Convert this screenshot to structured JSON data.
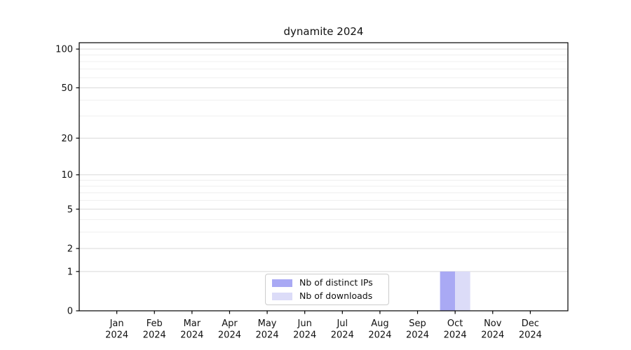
{
  "chart_data": {
    "type": "bar",
    "title": "dynamite 2024",
    "categories": [
      "Jan 2024",
      "Feb 2024",
      "Mar 2024",
      "Apr 2024",
      "May 2024",
      "Jun 2024",
      "Jul 2024",
      "Aug 2024",
      "Sep 2024",
      "Oct 2024",
      "Nov 2024",
      "Dec 2024"
    ],
    "series": [
      {
        "name": "Nb of distinct IPs",
        "color": "#a9a9f4",
        "values": [
          0,
          0,
          0,
          0,
          0,
          0,
          0,
          0,
          0,
          1,
          0,
          0
        ]
      },
      {
        "name": "Nb of downloads",
        "color": "#dcdcf8",
        "values": [
          0,
          0,
          0,
          0,
          0,
          0,
          0,
          0,
          0,
          1,
          0,
          0
        ]
      }
    ],
    "yscale": "log1p",
    "ylim": [
      0,
      112
    ],
    "y_major_ticks": [
      0,
      1,
      2,
      5,
      10,
      20,
      50,
      100
    ],
    "y_minor_ticks": [
      3,
      4,
      6,
      7,
      8,
      9,
      30,
      40,
      60,
      70,
      80,
      90
    ],
    "grid": "horizontal-on",
    "legend_position": "inside lower center",
    "colors": {
      "major_grid": "#d9d9d9",
      "minor_grid": "#efefef",
      "spine": "#000000",
      "text": "#111111",
      "background": "#ffffff"
    }
  }
}
